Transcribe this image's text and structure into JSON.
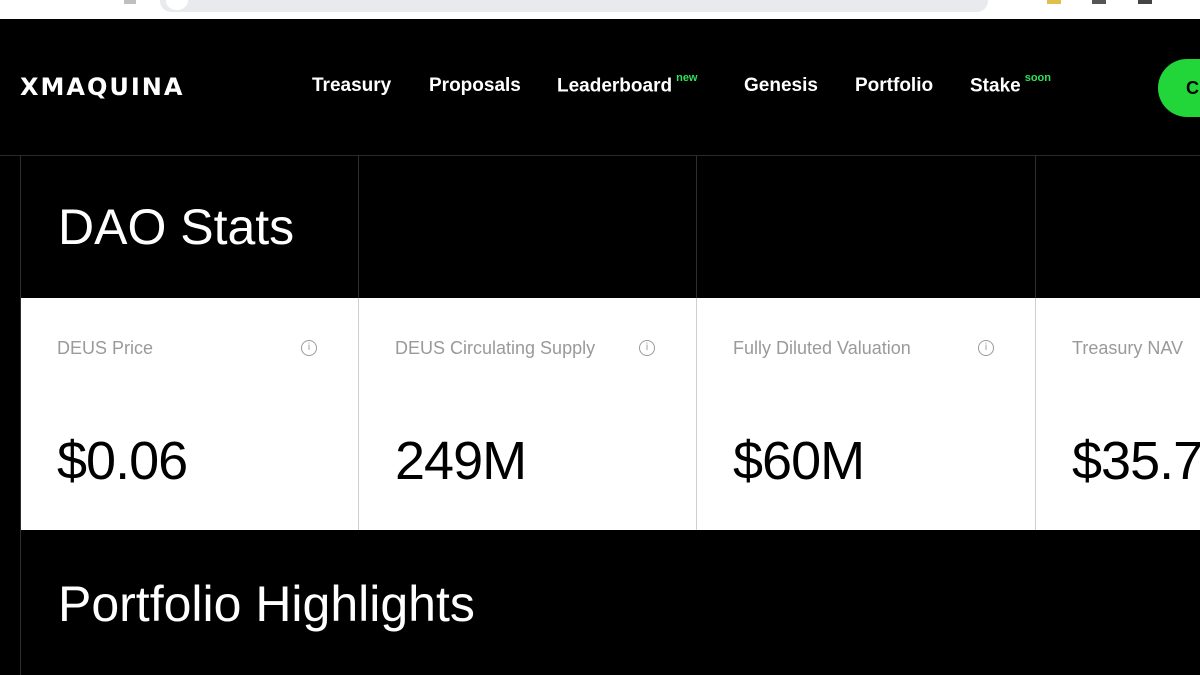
{
  "brand": {
    "logo_text": "XMAQUINA",
    "accent_color": "#22d63a"
  },
  "nav": {
    "items": [
      {
        "label": "Treasury",
        "badge": ""
      },
      {
        "label": "Proposals",
        "badge": ""
      },
      {
        "label": "Leaderboard",
        "badge": "new"
      },
      {
        "label": "Genesis",
        "badge": ""
      },
      {
        "label": "Portfolio",
        "badge": ""
      },
      {
        "label": "Stake",
        "badge": "soon"
      }
    ],
    "cta_label": "C"
  },
  "dao_stats": {
    "title": "DAO Stats",
    "cards": [
      {
        "label": "DEUS Price",
        "value": "$0.06"
      },
      {
        "label": "DEUS Circulating Supply",
        "value": "249M"
      },
      {
        "label": "Fully Diluted Valuation",
        "value": "$60M"
      },
      {
        "label": "Treasury NAV",
        "value": "$35.7"
      }
    ]
  },
  "portfolio": {
    "title": "Portfolio Highlights"
  }
}
